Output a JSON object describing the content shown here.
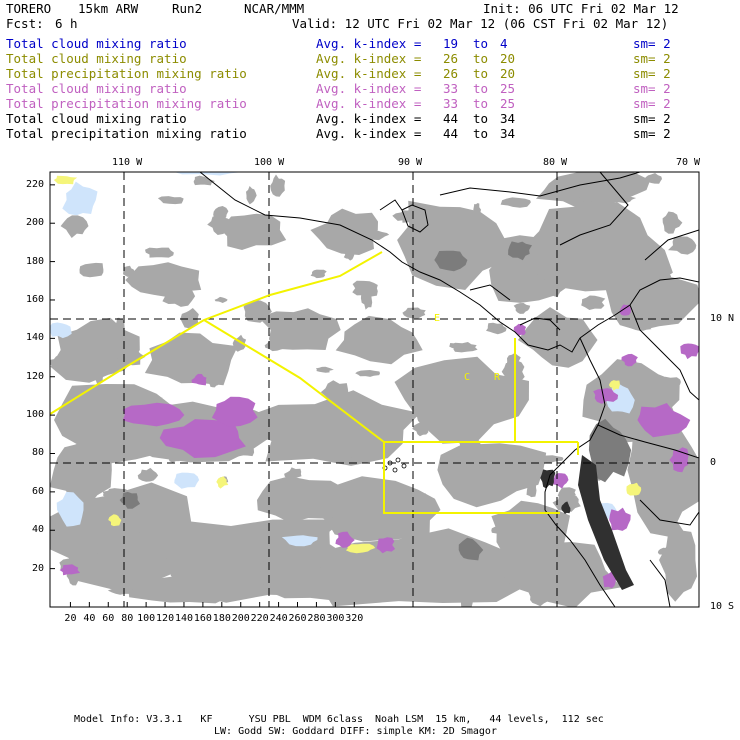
{
  "header": {
    "model": "TORERO",
    "resolution": "15km ARW",
    "run": "Run2",
    "org": "NCAR/MMM",
    "init": "Init: 06 UTC Fri 02 Mar 12",
    "fcst_label": "Fcst:",
    "fcst_value": "6 h",
    "valid": "Valid: 12 UTC Fri 02 Mar 12 (06 CST Fri 02 Mar 12)"
  },
  "legend": [
    {
      "field": "Total cloud mixing ratio",
      "kindex": "Avg. k-index =",
      "from": "19",
      "to_word": "to",
      "to": "4",
      "sm": "sm= 2",
      "color": "#0000c8",
      "index_color": "#0000c8"
    },
    {
      "field": "Total cloud mixing ratio",
      "kindex": "Avg. k-index =",
      "from": "26",
      "to_word": "to",
      "to": "20",
      "sm": "sm= 2",
      "color": "#8c8c00",
      "index_color": "#8c8c00"
    },
    {
      "field": "Total precipitation mixing ratio",
      "kindex": "Avg. k-index =",
      "from": "26",
      "to_word": "to",
      "to": "20",
      "sm": "sm= 2",
      "color": "#8c8c00",
      "index_color": "#8c8c00"
    },
    {
      "field": "Total cloud mixing ratio",
      "kindex": "Avg. k-index =",
      "from": "33",
      "to_word": "to",
      "to": "25",
      "sm": "sm= 2",
      "color": "#c060c0",
      "index_color": "#c060c0"
    },
    {
      "field": "Total precipitation mixing ratio",
      "kindex": "Avg. k-index =",
      "from": "33",
      "to_word": "to",
      "to": "25",
      "sm": "sm= 2",
      "color": "#c060c0",
      "index_color": "#c060c0"
    },
    {
      "field": "Total cloud mixing ratio",
      "kindex": "Avg. k-index =",
      "from": "44",
      "to_word": "to",
      "to": "34",
      "sm": "sm= 2",
      "color": "#000000",
      "index_color": "#000000"
    },
    {
      "field": "Total precipitation mixing ratio",
      "kindex": "Avg. k-index =",
      "from": "44",
      "to_word": "to",
      "to": "34",
      "sm": "sm= 2",
      "color": "#000000",
      "index_color": "#000000"
    }
  ],
  "map": {
    "top_labels": [
      "110 W",
      "100 W",
      "90 W",
      "80 W",
      "70 W"
    ],
    "right_labels": [
      "10 N",
      "0",
      "10 S"
    ],
    "left_ticks": [
      "220",
      "200",
      "180",
      "160",
      "140",
      "120",
      "100",
      "80",
      "60",
      "40",
      "20"
    ],
    "bottom_ticks": [
      "20",
      "40",
      "60",
      "80",
      "100",
      "120",
      "140",
      "160",
      "180",
      "200",
      "220",
      "240",
      "260",
      "280",
      "300",
      "320"
    ],
    "region_letters": [
      "E",
      "C",
      "R"
    ],
    "colors": {
      "cloud_gray": "#a8a8a8",
      "cloud_dark": "#7c7c7c",
      "core_black": "#303030",
      "ice_blue": "#cfe4fb",
      "snow_yellow": "#f5f57a",
      "precip_purple": "#b669c6",
      "domain_yellow": "#f3f300",
      "coast_black": "#000000"
    }
  },
  "footer": {
    "line1": "Model Info: V3.3.1   KF      YSU PBL  WDM 6class  Noah LSM  15 km,   44 levels,  112 sec",
    "line2": "LW: Godd SW: Goddard DIFF: simple KM: 2D Smagor"
  }
}
